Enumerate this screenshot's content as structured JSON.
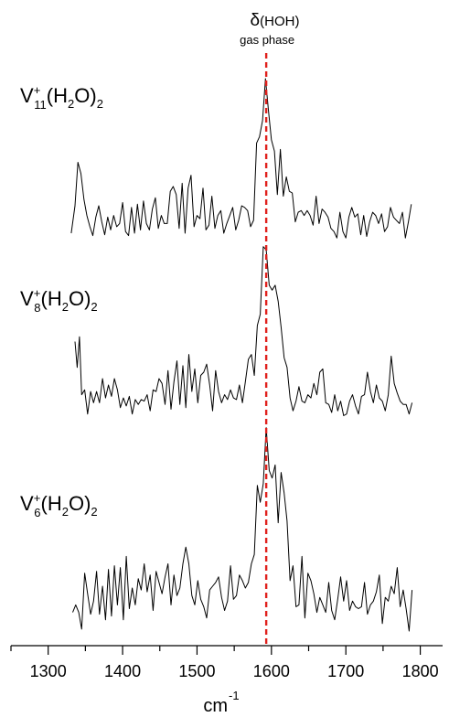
{
  "chart_data": {
    "type": "line",
    "title": "",
    "xlabel": "cm",
    "xlabel_superscript": "-1",
    "ylabel": "",
    "xlim": [
      1250,
      1830
    ],
    "xticks": [
      1300,
      1400,
      1500,
      1600,
      1700,
      1800
    ],
    "grid": false,
    "legend": "none",
    "reference_line": {
      "x": 1593,
      "color": "#e0201c",
      "style": "dashed",
      "label_symbol": "δ",
      "label_text": "(HOH)",
      "label_sub": "gas phase"
    },
    "series": [
      {
        "name": "V11+(H2O)2",
        "label": {
          "base": "V",
          "sup": "+",
          "sub": "11",
          "paren": "(H",
          "sub2": "2",
          "tail": "O)",
          "sub3": "2"
        },
        "x": [
          1331,
          1336,
          1340,
          1344,
          1348,
          1352,
          1356,
          1360,
          1364,
          1368,
          1372,
          1376,
          1380,
          1384,
          1388,
          1392,
          1396,
          1400,
          1404,
          1408,
          1412,
          1416,
          1420,
          1424,
          1428,
          1432,
          1436,
          1440,
          1444,
          1448,
          1452,
          1456,
          1460,
          1464,
          1468,
          1472,
          1476,
          1480,
          1484,
          1488,
          1492,
          1496,
          1500,
          1504,
          1508,
          1512,
          1516,
          1520,
          1524,
          1528,
          1532,
          1536,
          1540,
          1544,
          1548,
          1552,
          1556,
          1560,
          1564,
          1568,
          1572,
          1576,
          1580,
          1584,
          1588,
          1592,
          1596,
          1600,
          1604,
          1608,
          1612,
          1616,
          1620,
          1624,
          1628,
          1632,
          1636,
          1640,
          1644,
          1648,
          1652,
          1656,
          1660,
          1664,
          1668,
          1672,
          1676,
          1680,
          1684,
          1688,
          1692,
          1696,
          1700,
          1704,
          1708,
          1712,
          1716,
          1720,
          1724,
          1728,
          1732,
          1736,
          1740,
          1744,
          1748,
          1752,
          1756,
          1760,
          1764,
          1768,
          1772,
          1776,
          1780,
          1784,
          1788
        ],
        "y": [
          0.08,
          0.42,
          0.96,
          0.82,
          0.5,
          0.3,
          0.16,
          0.05,
          0.28,
          0.42,
          0.22,
          0.06,
          0.28,
          0.12,
          0.3,
          0.16,
          0.2,
          0.46,
          0.1,
          0.05,
          0.4,
          0.08,
          0.44,
          0.12,
          0.48,
          0.2,
          0.12,
          0.38,
          0.52,
          0.14,
          0.3,
          0.2,
          0.2,
          0.6,
          0.66,
          0.56,
          0.14,
          0.7,
          0.08,
          0.64,
          0.8,
          0.16,
          0.3,
          0.26,
          0.64,
          0.12,
          0.18,
          0.54,
          0.14,
          0.3,
          0.36,
          0.08,
          0.2,
          0.3,
          0.4,
          0.12,
          0.24,
          0.42,
          0.4,
          0.36,
          0.16,
          0.24,
          1.2,
          1.28,
          1.48,
          2.0,
          1.6,
          1.24,
          1.1,
          0.56,
          1.12,
          0.54,
          0.78,
          0.6,
          0.58,
          0.22,
          0.34,
          0.36,
          0.3,
          0.36,
          0.3,
          0.18,
          0.54,
          0.2,
          0.38,
          0.34,
          0.28,
          0.14,
          0.1,
          0.02,
          0.34,
          0.1,
          0.02,
          0.28,
          0.4,
          0.28,
          0.32,
          0.06,
          0.3,
          0.04,
          0.22,
          0.34,
          0.3,
          0.2,
          0.32,
          0.1,
          0.16,
          0.4,
          0.28,
          0.24,
          0.2,
          0.34,
          0.02,
          0.22,
          0.44
        ]
      },
      {
        "name": "V8+(H2O)2",
        "label": {
          "base": "V",
          "sup": "+",
          "sub": "8",
          "paren": "(H",
          "sub2": "2",
          "tail": "O)",
          "sub3": "2"
        },
        "x": [
          1336,
          1339,
          1342,
          1345,
          1349,
          1353,
          1357,
          1361,
          1365,
          1369,
          1373,
          1377,
          1381,
          1385,
          1389,
          1393,
          1397,
          1401,
          1405,
          1409,
          1413,
          1417,
          1421,
          1425,
          1429,
          1433,
          1437,
          1441,
          1445,
          1449,
          1453,
          1457,
          1461,
          1465,
          1469,
          1473,
          1477,
          1481,
          1485,
          1489,
          1493,
          1497,
          1501,
          1505,
          1509,
          1513,
          1517,
          1521,
          1525,
          1529,
          1533,
          1537,
          1541,
          1545,
          1549,
          1553,
          1557,
          1561,
          1565,
          1569,
          1573,
          1577,
          1581,
          1585,
          1589,
          1593,
          1597,
          1601,
          1605,
          1609,
          1613,
          1617,
          1621,
          1625,
          1629,
          1633,
          1637,
          1641,
          1645,
          1649,
          1653,
          1657,
          1661,
          1665,
          1669,
          1673,
          1677,
          1681,
          1685,
          1689,
          1693,
          1697,
          1701,
          1705,
          1709,
          1713,
          1717,
          1721,
          1725,
          1729,
          1733,
          1737,
          1741,
          1745,
          1749,
          1753,
          1757,
          1761,
          1765,
          1769,
          1773,
          1777,
          1781,
          1785,
          1789
        ],
        "y": [
          0.96,
          0.64,
          1.02,
          0.3,
          0.36,
          0.06,
          0.34,
          0.2,
          0.34,
          0.2,
          0.5,
          0.26,
          0.42,
          0.28,
          0.5,
          0.36,
          0.14,
          0.26,
          0.16,
          0.28,
          0.06,
          0.24,
          0.18,
          0.24,
          0.22,
          0.3,
          0.1,
          0.36,
          0.34,
          0.5,
          0.44,
          0.18,
          0.6,
          0.12,
          0.46,
          0.72,
          0.18,
          0.66,
          0.14,
          0.8,
          0.34,
          0.62,
          0.2,
          0.54,
          0.58,
          0.68,
          0.42,
          0.1,
          0.6,
          0.34,
          0.2,
          0.3,
          0.24,
          0.36,
          0.26,
          0.24,
          0.42,
          0.2,
          0.46,
          0.74,
          0.8,
          0.54,
          1.16,
          1.3,
          2.14,
          2.1,
          1.66,
          1.6,
          1.66,
          1.46,
          1.14,
          0.76,
          0.64,
          0.26,
          0.1,
          0.22,
          0.4,
          0.22,
          0.2,
          0.3,
          0.26,
          0.44,
          0.3,
          0.58,
          0.62,
          0.2,
          0.18,
          0.08,
          0.3,
          0.1,
          0.22,
          0.04,
          0.06,
          0.22,
          0.3,
          0.16,
          0.06,
          0.28,
          0.3,
          0.58,
          0.34,
          0.2,
          0.42,
          0.26,
          0.22,
          0.1,
          0.3,
          0.78,
          0.44,
          0.32,
          0.22,
          0.18,
          0.18,
          0.06,
          0.2
        ]
      },
      {
        "name": "V6+(H2O)2",
        "label": {
          "base": "V",
          "sup": "+",
          "sub": "6",
          "paren": "(H",
          "sub2": "2",
          "tail": "O)",
          "sub3": "2"
        },
        "x": [
          1333,
          1337,
          1341,
          1345,
          1349,
          1353,
          1357,
          1361,
          1365,
          1369,
          1373,
          1377,
          1381,
          1385,
          1389,
          1393,
          1397,
          1401,
          1405,
          1409,
          1413,
          1417,
          1421,
          1425,
          1429,
          1433,
          1437,
          1441,
          1445,
          1449,
          1453,
          1457,
          1461,
          1465,
          1469,
          1473,
          1477,
          1481,
          1485,
          1489,
          1493,
          1497,
          1501,
          1505,
          1509,
          1513,
          1517,
          1521,
          1525,
          1529,
          1533,
          1537,
          1541,
          1545,
          1549,
          1553,
          1557,
          1561,
          1565,
          1569,
          1573,
          1577,
          1581,
          1585,
          1589,
          1593,
          1597,
          1601,
          1605,
          1609,
          1613,
          1617,
          1621,
          1625,
          1629,
          1633,
          1637,
          1641,
          1645,
          1649,
          1653,
          1657,
          1661,
          1665,
          1669,
          1673,
          1677,
          1681,
          1685,
          1689,
          1693,
          1697,
          1701,
          1705,
          1709,
          1713,
          1717,
          1721,
          1725,
          1729,
          1733,
          1737,
          1741,
          1745,
          1749,
          1753,
          1757,
          1761,
          1765,
          1769,
          1773,
          1777,
          1781,
          1785,
          1789
        ],
        "y": [
          0.22,
          0.3,
          0.22,
          0.04,
          0.64,
          0.42,
          0.2,
          0.34,
          0.66,
          0.2,
          0.5,
          0.14,
          0.68,
          0.18,
          0.72,
          0.3,
          0.7,
          0.14,
          0.82,
          0.26,
          0.48,
          0.3,
          0.58,
          0.46,
          0.74,
          0.44,
          0.62,
          0.24,
          0.66,
          0.54,
          0.42,
          0.6,
          0.74,
          0.3,
          0.62,
          0.4,
          0.48,
          0.74,
          0.92,
          0.74,
          0.4,
          0.3,
          0.56,
          0.36,
          0.28,
          0.16,
          0.46,
          0.5,
          0.54,
          0.6,
          0.38,
          0.24,
          0.34,
          0.72,
          0.36,
          0.4,
          0.62,
          0.56,
          0.48,
          0.54,
          0.74,
          0.84,
          1.58,
          1.4,
          1.6,
          2.2,
          1.74,
          1.66,
          1.8,
          1.18,
          1.72,
          1.5,
          1.2,
          0.56,
          0.72,
          0.28,
          0.3,
          0.82,
          0.16,
          0.64,
          0.56,
          0.42,
          0.22,
          0.38,
          0.3,
          0.22,
          0.54,
          0.24,
          0.14,
          0.36,
          0.6,
          0.34,
          0.56,
          0.24,
          0.34,
          0.28,
          0.26,
          0.28,
          0.54,
          0.2,
          0.3,
          0.34,
          0.44,
          0.62,
          0.1,
          0.38,
          0.34,
          0.5,
          0.42,
          0.7,
          0.28,
          0.46,
          0.26,
          0.02,
          0.46
        ]
      }
    ]
  }
}
